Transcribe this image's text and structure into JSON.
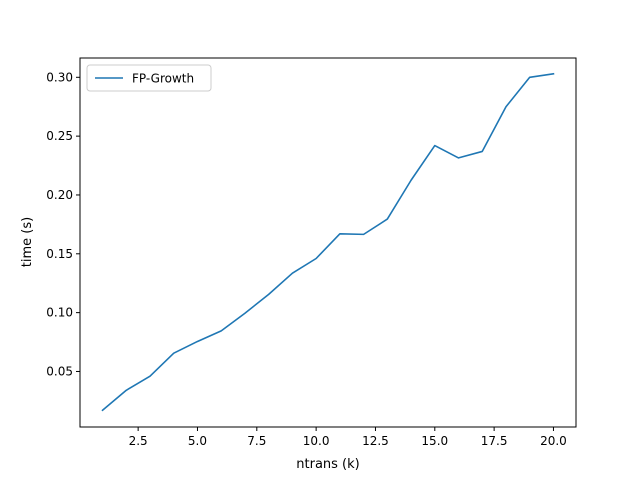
{
  "chart_data": {
    "type": "line",
    "title": "",
    "xlabel": "ntrans (k)",
    "ylabel": "time (s)",
    "xlim": [
      0.05,
      20.95
    ],
    "ylim": [
      0.0028,
      0.3164
    ],
    "xticks": [
      2.5,
      5.0,
      7.5,
      10.0,
      12.5,
      15.0,
      17.5,
      20.0
    ],
    "xtick_labels": [
      "2.5",
      "5.0",
      "7.5",
      "10.0",
      "12.5",
      "15.0",
      "17.5",
      "20.0"
    ],
    "yticks": [
      0.05,
      0.1,
      0.15,
      0.2,
      0.25,
      0.3
    ],
    "ytick_labels": [
      "0.05",
      "0.10",
      "0.15",
      "0.20",
      "0.25",
      "0.30"
    ],
    "grid": false,
    "legend_position": "upper-left",
    "series": [
      {
        "name": "FP-Growth",
        "color": "#1f77b4",
        "x": [
          1,
          2,
          3,
          4,
          5,
          6,
          7,
          8,
          9,
          10,
          11,
          12,
          13,
          14,
          15,
          16,
          17,
          18,
          19,
          20
        ],
        "y": [
          0.017,
          0.034,
          0.046,
          0.0655,
          0.0755,
          0.0845,
          0.0995,
          0.1155,
          0.1335,
          0.146,
          0.167,
          0.1665,
          0.1795,
          0.2125,
          0.242,
          0.2315,
          0.237,
          0.275,
          0.3,
          0.303
        ]
      }
    ]
  }
}
